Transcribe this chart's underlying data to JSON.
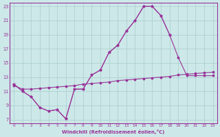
{
  "xlabel": "Windchill (Refroidissement éolien,°C)",
  "bg_color": "#cce8e8",
  "line_color": "#993399",
  "grid_color": "#aacccc",
  "xmin": 0,
  "xmax": 23,
  "ymin": 7,
  "ymax": 23,
  "yticks": [
    7,
    9,
    11,
    13,
    15,
    17,
    19,
    21,
    23
  ],
  "xticks": [
    0,
    1,
    2,
    3,
    4,
    5,
    6,
    7,
    8,
    9,
    10,
    11,
    12,
    13,
    14,
    15,
    16,
    17,
    18,
    19,
    20,
    21,
    22,
    23
  ],
  "line1_x": [
    0,
    1,
    2,
    3,
    4,
    5,
    6,
    7,
    8,
    9,
    10,
    11,
    12,
    13,
    14,
    15,
    16,
    17,
    18
  ],
  "line1_y": [
    12.0,
    11.0,
    10.2,
    8.7,
    8.2,
    8.4,
    7.1,
    11.3,
    11.3,
    13.3,
    14.0,
    16.5,
    17.5,
    19.5,
    21.0,
    23.0,
    23.0,
    21.7,
    19.0
  ],
  "line2_x": [
    0,
    1,
    2,
    3,
    4,
    5,
    6,
    7,
    8,
    9,
    10,
    11,
    12,
    13,
    14,
    15,
    16,
    17,
    18,
    19,
    20,
    21,
    22,
    23
  ],
  "line2_y": [
    12.0,
    11.0,
    10.2,
    8.7,
    8.2,
    8.4,
    7.1,
    11.3,
    11.3,
    13.3,
    14.0,
    16.5,
    17.5,
    19.5,
    21.0,
    23.0,
    23.0,
    21.7,
    19.0,
    15.8,
    13.2,
    13.2,
    13.2,
    13.2
  ],
  "line3_x": [
    0,
    1,
    2,
    3,
    4,
    5,
    6,
    7,
    8,
    9,
    10,
    11,
    12,
    13,
    14,
    15,
    16,
    17,
    18,
    19,
    20,
    21,
    22,
    23
  ],
  "line3_y": [
    11.8,
    11.3,
    11.3,
    11.4,
    11.5,
    11.6,
    11.7,
    11.8,
    12.0,
    12.1,
    12.2,
    12.3,
    12.5,
    12.6,
    12.7,
    12.8,
    12.9,
    13.0,
    13.1,
    13.3,
    13.4,
    13.5,
    13.6,
    13.7
  ]
}
